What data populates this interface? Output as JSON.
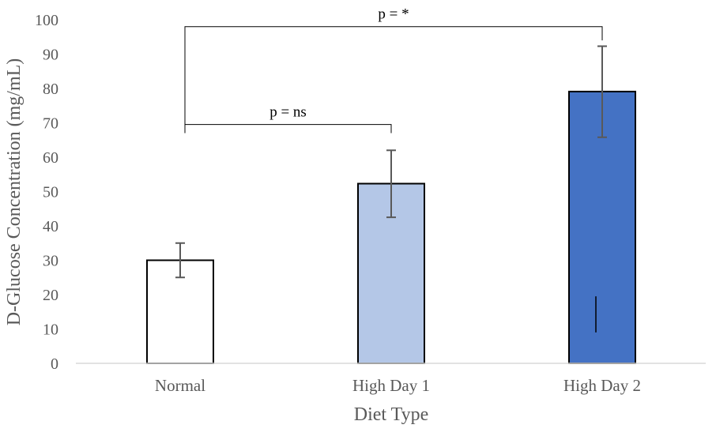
{
  "chart_data": {
    "type": "bar",
    "title": "",
    "xlabel": "Diet Type",
    "ylabel": "D-Glucose Concentration (mg/mL)",
    "ylim": [
      0,
      100
    ],
    "yticks": [
      0,
      10,
      20,
      30,
      40,
      50,
      60,
      70,
      80,
      90,
      100
    ],
    "categories": [
      "Normal",
      "High Day 1",
      "High Day 2"
    ],
    "values": [
      30,
      52.3,
      79.1
    ],
    "error_bars": [
      {
        "low": 25,
        "high": 35
      },
      {
        "low": 42.5,
        "high": 62
      },
      {
        "low": 65.8,
        "high": 92.3
      }
    ],
    "bar_colors": [
      "#ffffff",
      "#b4c7e7",
      "#4472c4"
    ],
    "bar_edge_color": "#000000",
    "errorbar_color": "#595959",
    "axis_color": "#d9d9d9",
    "grid": false,
    "legend": "none",
    "annotations": [
      {
        "text": "p = ns",
        "from": "Normal",
        "to": "High Day 1",
        "level": 69.5,
        "drop_left": 67,
        "drop_right": 67
      },
      {
        "text": "p = *",
        "from": "Normal",
        "to": "High Day 2",
        "level": 98,
        "drop_left": 67,
        "drop_right": 94
      }
    ],
    "stray_mark": {
      "category": "High Day 2",
      "from": 9,
      "to": 19.5
    }
  }
}
